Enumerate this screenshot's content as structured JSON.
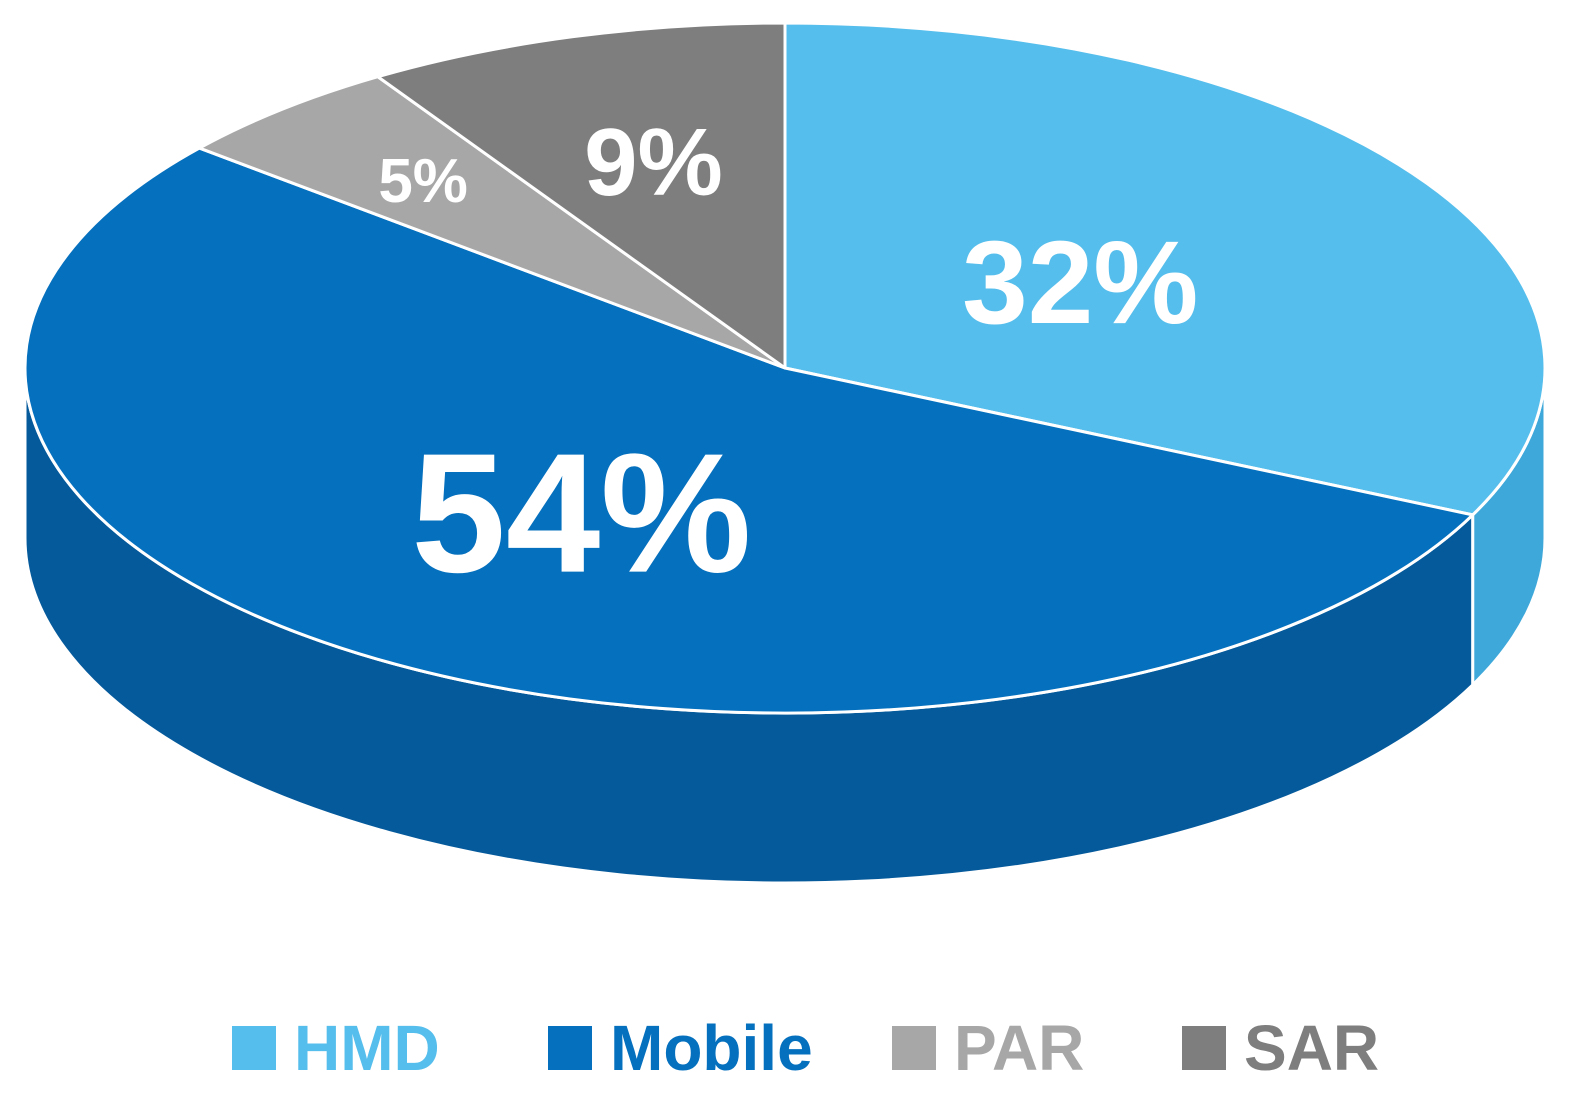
{
  "chart_data": {
    "type": "pie",
    "title": "",
    "style": "3d",
    "legend_position": "bottom",
    "categories": [
      "HMD",
      "Mobile",
      "PAR",
      "SAR"
    ],
    "values": [
      32,
      54,
      5,
      9
    ],
    "labels": [
      "32%",
      "54%",
      "5%",
      "9%"
    ],
    "colors": {
      "HMD": "#56BEEC",
      "Mobile": "#0570BE",
      "PAR": "#A7A7A7",
      "SAR": "#7E7E7E"
    },
    "side_colors": {
      "HMD": "#3FA8DA",
      "Mobile": "#055A9C",
      "PAR": "#8F8F8F",
      "SAR": "#6A6A6A"
    },
    "label_color": "#FFFFFF"
  }
}
